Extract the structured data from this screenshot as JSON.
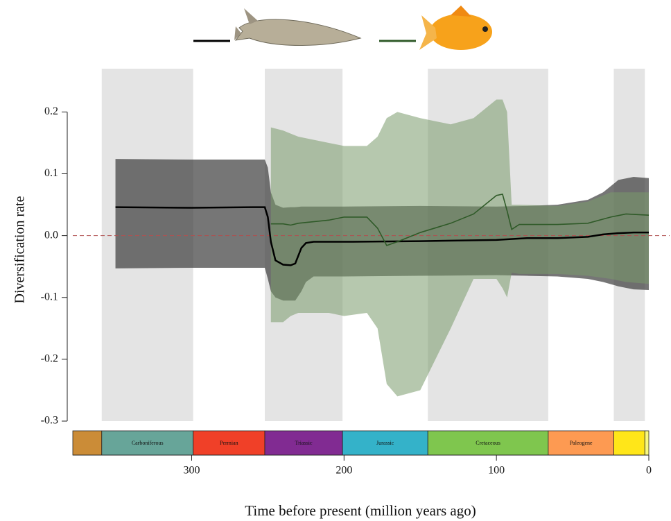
{
  "chart_data": {
    "type": "line",
    "ylabel": "Diversification rate",
    "xlabel": "Time before present (million years ago)",
    "xlim": [
      378,
      0
    ],
    "ylim": [
      -0.3,
      0.27
    ],
    "xticks": [
      300,
      200,
      100,
      0
    ],
    "yticks": [
      0.2,
      0.1,
      {
        "value": 0,
        "label": "0.0"
      },
      -0.1,
      -0.2,
      -0.3
    ],
    "hline": 0,
    "hline_color": "#b05050",
    "shade_color": "#e4e4e4",
    "periods": [
      {
        "name": null,
        "start": 378,
        "end": 359,
        "color": "#cb8c37",
        "shaded": false
      },
      {
        "name": "Carboniferous",
        "start": 359,
        "end": 299,
        "color": "#67a599",
        "shaded": true
      },
      {
        "name": "Permian",
        "start": 299,
        "end": 252,
        "color": "#f04028",
        "shaded": false
      },
      {
        "name": "Triassic",
        "start": 252,
        "end": 201,
        "color": "#812b92",
        "shaded": true
      },
      {
        "name": "Jurassic",
        "start": 201,
        "end": 145,
        "color": "#34b2c9",
        "shaded": false
      },
      {
        "name": "Cretaceous",
        "start": 145,
        "end": 66,
        "color": "#7fc64e",
        "shaded": true
      },
      {
        "name": "Paleogene",
        "start": 66,
        "end": 23,
        "color": "#fd9a52",
        "shaded": false
      },
      {
        "name": null,
        "start": 23,
        "end": 2.6,
        "color": "#ffe619",
        "shaded": true
      },
      {
        "name": null,
        "start": 2.6,
        "end": 0,
        "color": "#f9f97f",
        "shaded": false
      }
    ],
    "series": [
      {
        "color": "#000000",
        "band_color": "#3c3c3c",
        "x": [
          350,
          300,
          260,
          252,
          250,
          248,
          245,
          240,
          235,
          232,
          228,
          225,
          220,
          200,
          150,
          100,
          80,
          60,
          40,
          30,
          20,
          10,
          0
        ],
        "values": [
          0.046,
          0.045,
          0.046,
          0.046,
          0.03,
          -0.01,
          -0.04,
          -0.047,
          -0.048,
          -0.045,
          -0.02,
          -0.012,
          -0.01,
          -0.01,
          -0.009,
          -0.007,
          -0.004,
          -0.004,
          -0.002,
          0.002,
          0.004,
          0.005,
          0.005
        ],
        "upper": [
          0.124,
          0.123,
          0.123,
          0.123,
          0.11,
          0.07,
          0.05,
          0.045,
          0.046,
          0.046,
          0.047,
          0.047,
          0.047,
          0.047,
          0.048,
          0.047,
          0.048,
          0.05,
          0.058,
          0.07,
          0.09,
          0.095,
          0.093
        ],
        "lower": [
          -0.053,
          -0.052,
          -0.052,
          -0.052,
          -0.07,
          -0.09,
          -0.1,
          -0.105,
          -0.105,
          -0.105,
          -0.09,
          -0.075,
          -0.066,
          -0.066,
          -0.065,
          -0.064,
          -0.065,
          -0.066,
          -0.07,
          -0.075,
          -0.082,
          -0.087,
          -0.088
        ]
      },
      {
        "color": "#2f5a28",
        "band_color": "#7a9a6c",
        "x": [
          248,
          240,
          235,
          230,
          210,
          200,
          185,
          178,
          172,
          165,
          150,
          130,
          115,
          100,
          96,
          93,
          90,
          85,
          60,
          40,
          25,
          15,
          0
        ],
        "values": [
          0.019,
          0.019,
          0.017,
          0.02,
          0.025,
          0.03,
          0.03,
          0.012,
          -0.016,
          -0.01,
          0.005,
          0.02,
          0.035,
          0.065,
          0.067,
          0.04,
          0.01,
          0.018,
          0.018,
          0.02,
          0.03,
          0.035,
          0.033
        ],
        "upper": [
          0.175,
          0.17,
          0.165,
          0.16,
          0.15,
          0.145,
          0.145,
          0.16,
          0.19,
          0.2,
          0.19,
          0.18,
          0.19,
          0.22,
          0.22,
          0.2,
          0.05,
          0.05,
          0.048,
          0.055,
          0.07,
          0.07,
          0.07
        ],
        "lower": [
          -0.14,
          -0.14,
          -0.13,
          -0.125,
          -0.125,
          -0.13,
          -0.125,
          -0.15,
          -0.24,
          -0.26,
          -0.25,
          -0.15,
          -0.07,
          -0.07,
          -0.085,
          -0.1,
          -0.06,
          -0.062,
          -0.062,
          -0.065,
          -0.07,
          -0.075,
          -0.078
        ]
      }
    ]
  }
}
